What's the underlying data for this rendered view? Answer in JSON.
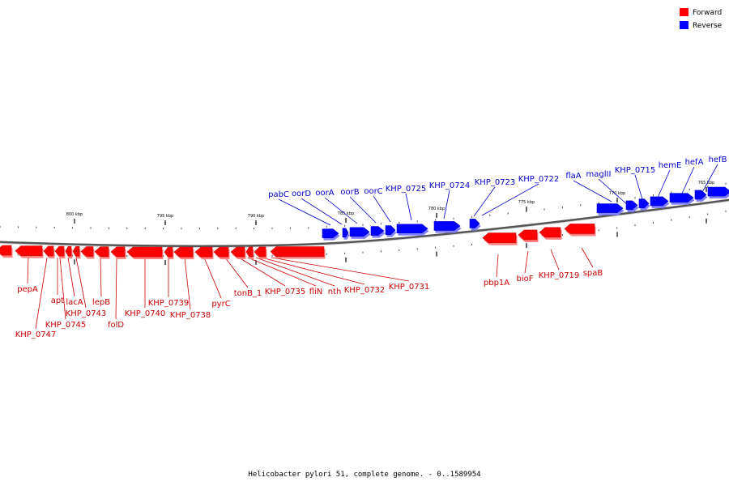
{
  "caption": "Helicobacter pylori 51, complete genome. - 0..1589954",
  "legend": [
    {
      "label": "Forward",
      "color": "#ff0000"
    },
    {
      "label": "Reverse",
      "color": "#0000ff"
    }
  ],
  "colors": {
    "forward": "#ff0000",
    "forward_dark": "#cc0000",
    "forward_light": "#ff8080",
    "reverse": "#0000ff",
    "reverse_dark": "#0000cc",
    "reverse_light": "#8080ff",
    "backbone": "#555555"
  },
  "scale_labels": [
    "800 kbp",
    "795 kbp",
    "790 kbp",
    "785 kbp",
    "780 kbp",
    "775 kbp",
    "770 kbp",
    "765 kbp"
  ],
  "forward_genes": [
    "pepA",
    "KHP_0747",
    "apt",
    "KHP_0745",
    "lacA",
    "KHP_0743",
    "lepB",
    "folD",
    "KHP_0740",
    "KHP_0739",
    "KHP_0738",
    "pyrC",
    "tonB_1",
    "KHP_0735",
    "fliN",
    "nth",
    "KHP_0732",
    "KHP_0731",
    "pbp1A",
    "bioF",
    "KHP_0719",
    "spaB"
  ],
  "reverse_genes": [
    "pabC",
    "oorD",
    "oorA",
    "oorB",
    "oorC",
    "KHP_0725",
    "KHP_0724",
    "KHP_0723",
    "KHP_0722",
    "flaA",
    "maglII",
    "KHP_0715",
    "hemE",
    "hefA",
    "hefB"
  ]
}
